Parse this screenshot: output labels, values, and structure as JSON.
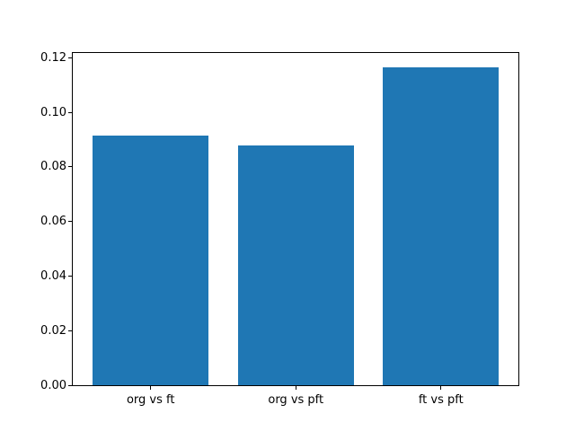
{
  "figure": {
    "background": "#ffffff",
    "title": ""
  },
  "chart_data": {
    "type": "bar",
    "categories": [
      "org vs ft",
      "org vs pft",
      "ft vs pft"
    ],
    "values": [
      0.0915,
      0.088,
      0.1165
    ],
    "title": "",
    "xlabel": "",
    "ylabel": "",
    "ylim": [
      0,
      0.1218
    ],
    "xlim": [
      -0.537,
      2.534
    ],
    "bar_width": 0.8,
    "yticks": [
      0.0,
      0.02,
      0.04,
      0.06,
      0.08,
      0.1,
      0.12
    ],
    "ytick_labels": [
      "0.00",
      "0.02",
      "0.04",
      "0.06",
      "0.08",
      "0.10",
      "0.12"
    ],
    "bar_color": "#1f77b4",
    "axis_color": "#000000",
    "grid": false,
    "legend": null
  }
}
